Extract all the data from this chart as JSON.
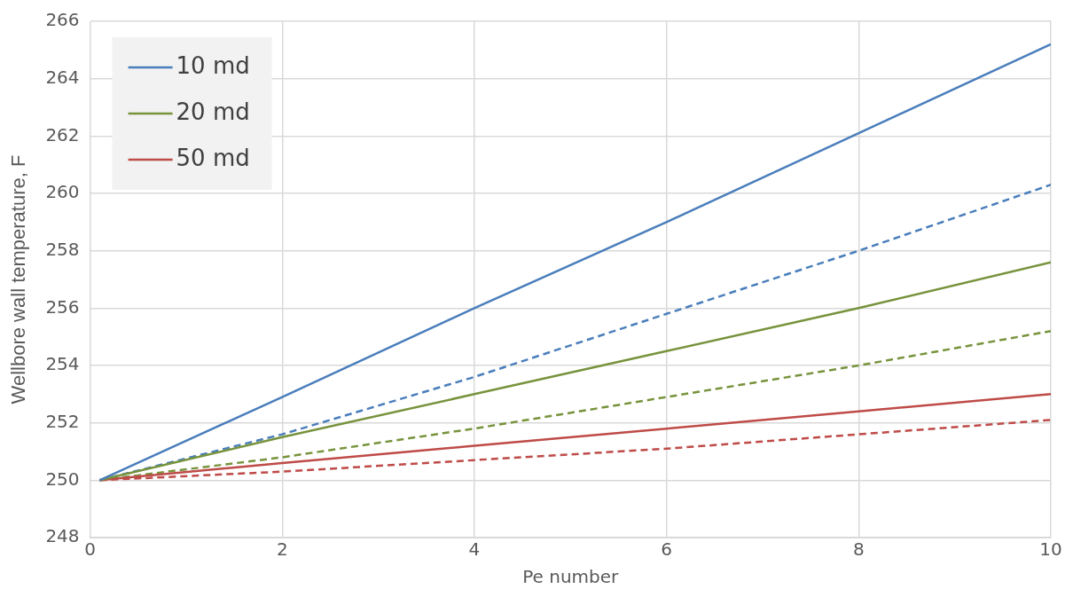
{
  "chart_data": {
    "type": "line",
    "xlabel": "Pe number",
    "ylabel": "Wellbore wall temperature, F",
    "xlim": [
      0,
      10
    ],
    "xticks": [
      0,
      2,
      4,
      6,
      8,
      10
    ],
    "ylim": [
      248,
      266
    ],
    "yticks": [
      248,
      250,
      252,
      254,
      256,
      258,
      260,
      262,
      264,
      266
    ],
    "grid": true,
    "legend": "top left",
    "marker": "none",
    "x": [
      0.1,
      2,
      4,
      6,
      8,
      10
    ],
    "series": [
      {
        "name": "10 md",
        "color": "#4a7ebb",
        "line_style": "solid",
        "values": [
          250,
          252.9,
          256,
          259,
          262.1,
          265.2
        ]
      },
      {
        "name": "20 md",
        "color": "#77933c",
        "line_style": "solid",
        "values": [
          250,
          251.5,
          253,
          254.5,
          256,
          257.6
        ]
      },
      {
        "name": "50 md",
        "color": "#be4b48",
        "line_style": "solid",
        "values": [
          250,
          250.6,
          251.2,
          251.8,
          252.4,
          253
        ]
      },
      {
        "color": "#4a7ebb",
        "line_style": "dashed",
        "values": [
          250,
          251.6,
          253.6,
          255.8,
          258,
          260.3
        ]
      },
      {
        "color": "#77933c",
        "line_style": "dashed",
        "values": [
          250,
          250.8,
          251.8,
          252.9,
          254,
          255.2
        ]
      },
      {
        "color": "#be4b48",
        "line_style": "dashed",
        "values": [
          250,
          250.3,
          250.7,
          251.1,
          251.6,
          252.1
        ]
      }
    ]
  }
}
